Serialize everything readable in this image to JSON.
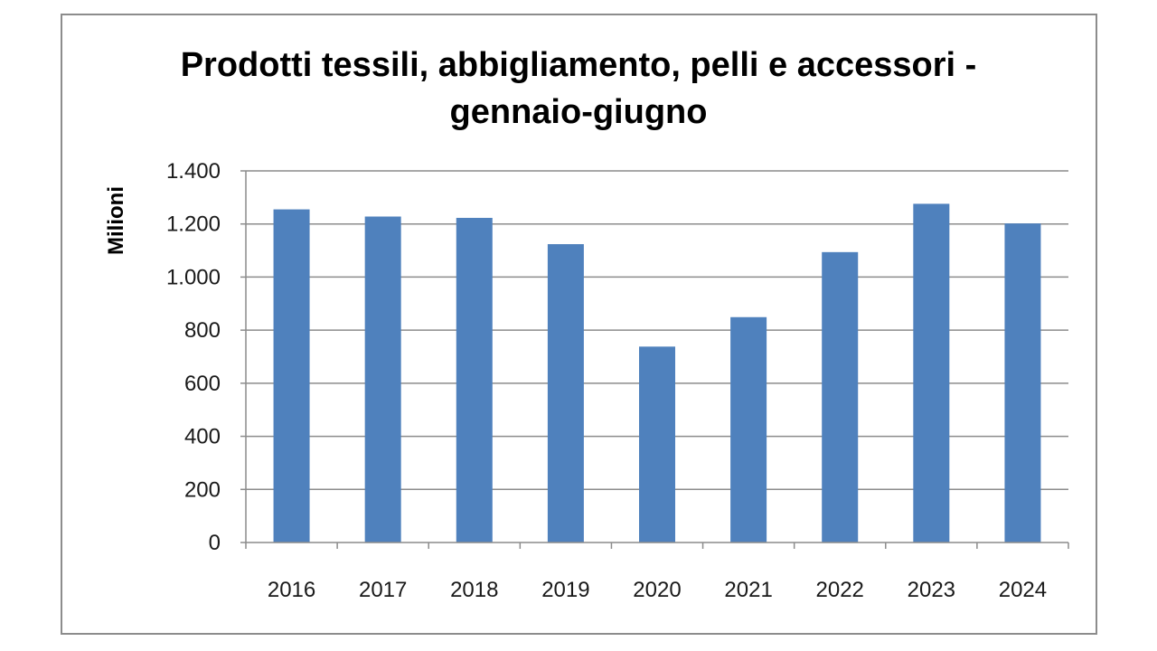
{
  "chart_data": {
    "type": "bar",
    "title_lines": [
      "Prodotti tessili, abbigliamento, pelli e accessori -",
      "gennaio-giugno"
    ],
    "xlabel": "",
    "ylabel": "Milioni",
    "categories": [
      "2016",
      "2017",
      "2018",
      "2019",
      "2020",
      "2021",
      "2022",
      "2023",
      "2024"
    ],
    "values": [
      1255,
      1228,
      1223,
      1124,
      738,
      849,
      1094,
      1276,
      1202
    ],
    "ylim": [
      0,
      1400
    ],
    "yticks": [
      0,
      200,
      400,
      600,
      800,
      1000,
      1200,
      1400
    ],
    "ytick_labels": [
      "0",
      "200",
      "400",
      "600",
      "800",
      "1.000",
      "1.200",
      "1.400"
    ],
    "grid": true,
    "legend": "none",
    "bar_color": "#4f81bd",
    "grid_color": "#8c8c8c"
  }
}
